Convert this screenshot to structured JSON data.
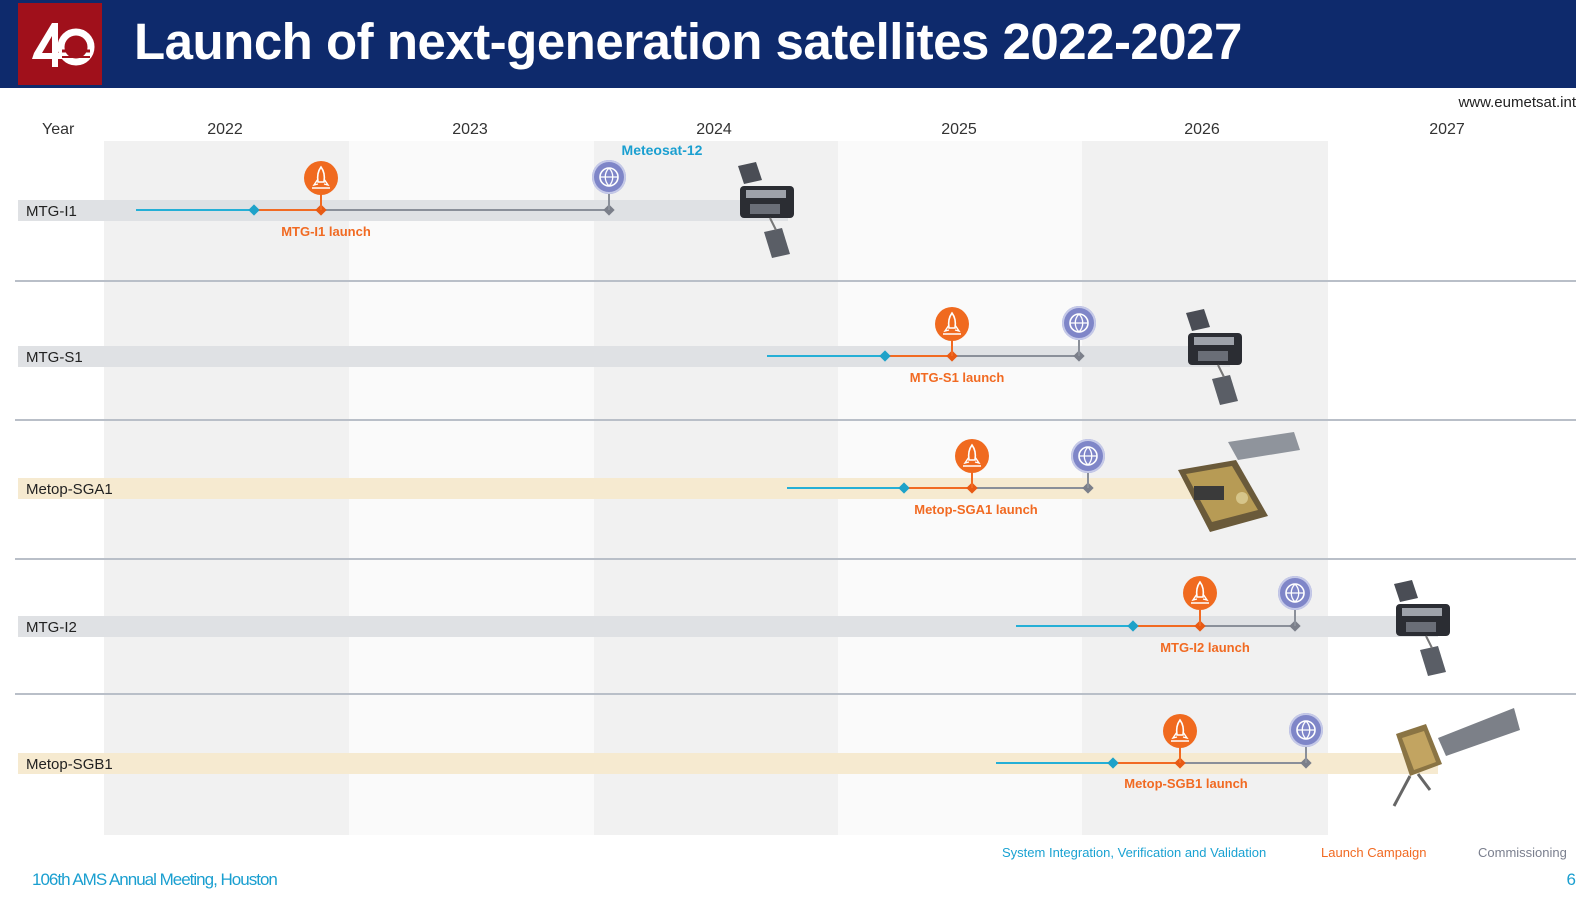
{
  "header": {
    "logo_text": "40",
    "title": "Launch of next-generation satellites 2022-2027"
  },
  "website": "www.eumetsat.int",
  "timeline": {
    "axis_label": "Year",
    "years": [
      "2022",
      "2023",
      "2024",
      "2025",
      "2026",
      "2027"
    ]
  },
  "rows": [
    {
      "name": "MTG-I1",
      "launch_label": "MTG-I1 launch",
      "commissioning_label": "Meteosat-12"
    },
    {
      "name": "MTG-S1",
      "launch_label": "MTG-S1 launch"
    },
    {
      "name": "Metop-SGA1",
      "launch_label": "Metop-SGA1 launch"
    },
    {
      "name": "MTG-I2",
      "launch_label": "MTG-I2 launch"
    },
    {
      "name": "Metop-SGB1",
      "launch_label": "Metop-SGB1 launch"
    }
  ],
  "legend": {
    "integration": "System Integration, Verification and Validation",
    "launch": "Launch Campaign",
    "commissioning": "Commissioning"
  },
  "footer": {
    "meeting": "106th AMS Annual Meeting, Houston",
    "page": "6"
  },
  "colors": {
    "header_bg": "#0e2a6c",
    "logo_bg": "#a0101b",
    "integration": "#25afd6",
    "launch": "#f16a22",
    "commissioning": "#7f86c8",
    "mtg_lane": "#dfe1e4",
    "metop_lane": "#f6ead0"
  },
  "icons": {
    "launch_marker": "rocket-icon",
    "commissioning_marker": "globe-icon",
    "satellite_image": "satellite-icon"
  }
}
